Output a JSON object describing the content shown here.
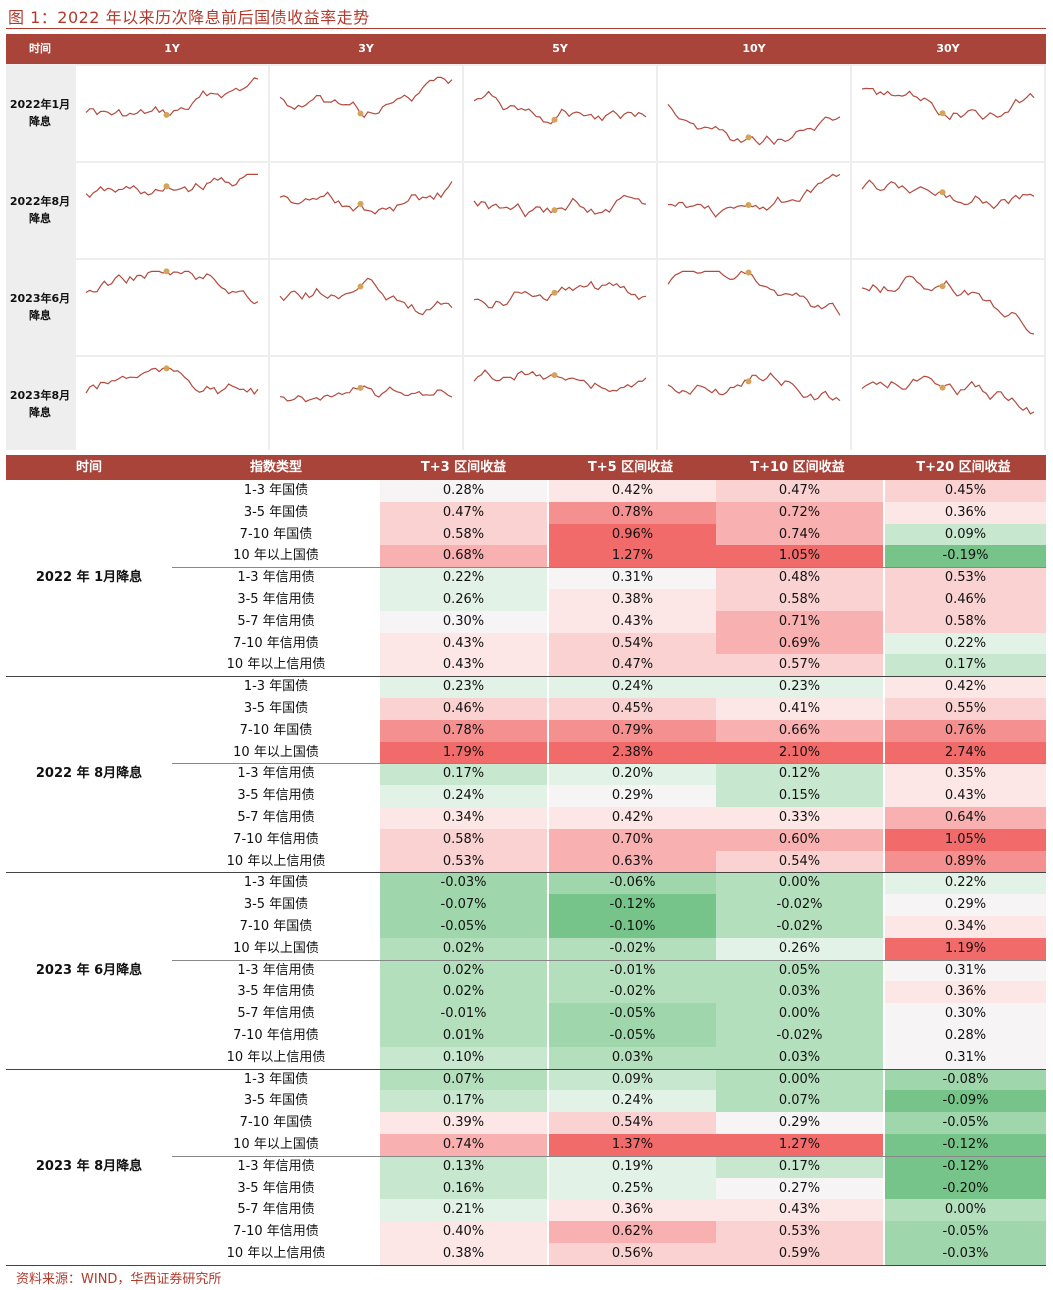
{
  "figure_title": "图 1：2022 年以来历次降息前后国债收益率走势",
  "grid_header": {
    "time": "时间",
    "tenors": [
      "1Y",
      "3Y",
      "5Y",
      "10Y",
      "30Y"
    ]
  },
  "grid_rows": [
    "2022年1月降息",
    "2022年8月降息",
    "2023年6月降息",
    "2023年8月降息"
  ],
  "line_color": "#b24a3e",
  "marker_color": "#d4a45a",
  "table_header": {
    "time": "时间",
    "type": "指数类型",
    "cols": [
      "T+3 区间收益",
      "T+5 区间收益",
      "T+10 区间收益",
      "T+20 区间收益"
    ]
  },
  "periods": [
    "2022 年 1月降息",
    "2022 年 8月降息",
    "2023 年 6月降息",
    "2023 年 8月降息"
  ],
  "index_types": [
    "1-3 年国债",
    "3-5 年国债",
    "7-10 年国债",
    "10 年以上国债",
    "1-3 年信用债",
    "3-5 年信用债",
    "5-7 年信用债",
    "7-10 年信用债",
    "10 年以上信用债"
  ],
  "chart_data": {
    "type": "table",
    "columns": [
      "T+3 区间收益",
      "T+5 区间收益",
      "T+10 区间收益",
      "T+20 区间收益"
    ],
    "values": [
      [
        "0.28%",
        "0.42%",
        "0.47%",
        "0.45%"
      ],
      [
        "0.47%",
        "0.78%",
        "0.72%",
        "0.36%"
      ],
      [
        "0.58%",
        "0.96%",
        "0.74%",
        "0.09%"
      ],
      [
        "0.68%",
        "1.27%",
        "1.05%",
        "-0.19%"
      ],
      [
        "0.22%",
        "0.31%",
        "0.48%",
        "0.53%"
      ],
      [
        "0.26%",
        "0.38%",
        "0.58%",
        "0.46%"
      ],
      [
        "0.30%",
        "0.43%",
        "0.71%",
        "0.58%"
      ],
      [
        "0.43%",
        "0.54%",
        "0.69%",
        "0.22%"
      ],
      [
        "0.43%",
        "0.47%",
        "0.57%",
        "0.17%"
      ],
      [
        "0.23%",
        "0.24%",
        "0.23%",
        "0.42%"
      ],
      [
        "0.46%",
        "0.45%",
        "0.41%",
        "0.55%"
      ],
      [
        "0.78%",
        "0.79%",
        "0.66%",
        "0.76%"
      ],
      [
        "1.79%",
        "2.38%",
        "2.10%",
        "2.74%"
      ],
      [
        "0.17%",
        "0.20%",
        "0.12%",
        "0.35%"
      ],
      [
        "0.24%",
        "0.29%",
        "0.15%",
        "0.43%"
      ],
      [
        "0.34%",
        "0.42%",
        "0.33%",
        "0.64%"
      ],
      [
        "0.58%",
        "0.70%",
        "0.60%",
        "1.05%"
      ],
      [
        "0.53%",
        "0.63%",
        "0.54%",
        "0.89%"
      ],
      [
        "-0.03%",
        "-0.06%",
        "0.00%",
        "0.22%"
      ],
      [
        "-0.07%",
        "-0.12%",
        "-0.02%",
        "0.29%"
      ],
      [
        "-0.05%",
        "-0.10%",
        "-0.02%",
        "0.34%"
      ],
      [
        "0.02%",
        "-0.02%",
        "0.26%",
        "1.19%"
      ],
      [
        "0.02%",
        "-0.01%",
        "0.05%",
        "0.31%"
      ],
      [
        "0.02%",
        "-0.02%",
        "0.03%",
        "0.36%"
      ],
      [
        "-0.01%",
        "-0.05%",
        "0.00%",
        "0.30%"
      ],
      [
        "0.01%",
        "-0.05%",
        "-0.02%",
        "0.28%"
      ],
      [
        "0.10%",
        "0.03%",
        "0.03%",
        "0.31%"
      ],
      [
        "0.07%",
        "0.09%",
        "0.00%",
        "-0.08%"
      ],
      [
        "0.17%",
        "0.24%",
        "0.07%",
        "-0.09%"
      ],
      [
        "0.39%",
        "0.54%",
        "0.29%",
        "-0.05%"
      ],
      [
        "0.74%",
        "1.37%",
        "1.27%",
        "-0.12%"
      ],
      [
        "0.13%",
        "0.19%",
        "0.17%",
        "-0.12%"
      ],
      [
        "0.16%",
        "0.25%",
        "0.27%",
        "-0.20%"
      ],
      [
        "0.21%",
        "0.36%",
        "0.43%",
        "0.00%"
      ],
      [
        "0.40%",
        "0.62%",
        "0.53%",
        "-0.05%"
      ],
      [
        "0.38%",
        "0.56%",
        "0.59%",
        "-0.03%"
      ]
    ]
  },
  "source": "资料来源：WIND，华西证券研究所"
}
